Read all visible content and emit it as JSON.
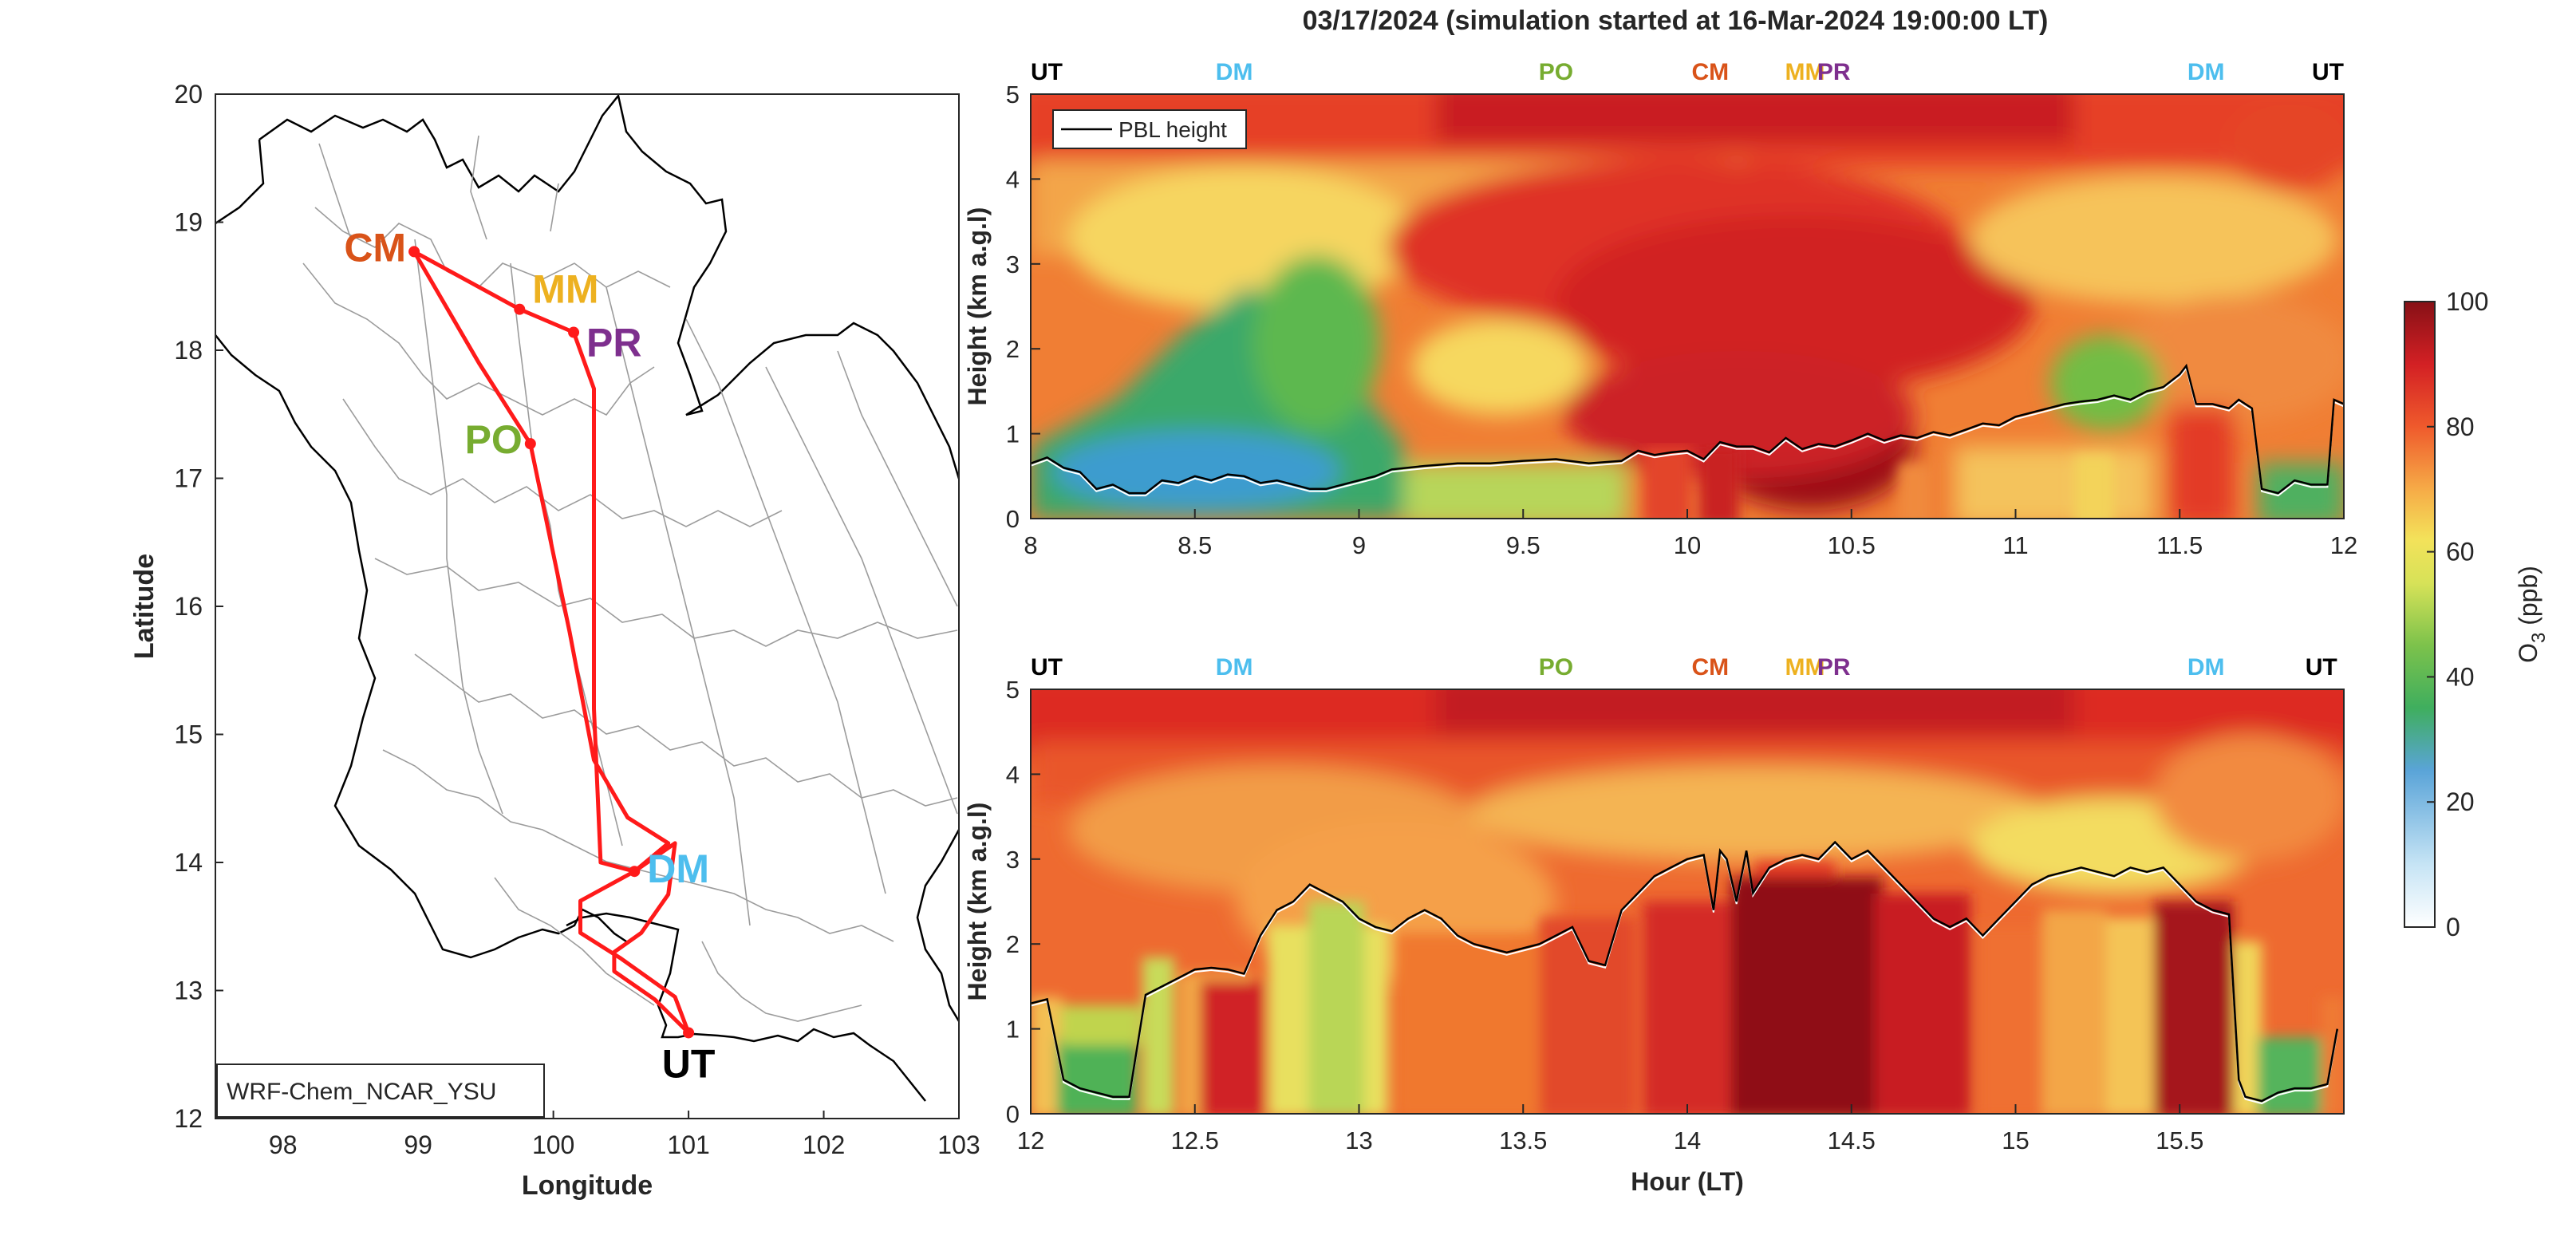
{
  "figure_title": "03/17/2024 (simulation started at 16-Mar-2024 19:00:00 LT)",
  "colors": {
    "route": "#ff1a1a",
    "CM": "#d95319",
    "MM": "#edb120",
    "PR": "#7e2f8e",
    "PO": "#77ac30",
    "DM": "#4dbeee",
    "UT": "#000000"
  },
  "chart_data": [
    {
      "type": "map",
      "xlabel": "Longitude",
      "ylabel": "Latitude",
      "xlim": [
        97.5,
        103
      ],
      "ylim": [
        12,
        20
      ],
      "xticks": [
        98,
        99,
        100,
        101,
        102,
        103
      ],
      "yticks": [
        12,
        13,
        14,
        15,
        16,
        17,
        18,
        19,
        20
      ],
      "legend": "WRF-Chem_NCAR_YSU",
      "stations": [
        {
          "name": "CM",
          "lon": 98.97,
          "lat": 18.77
        },
        {
          "name": "MM",
          "lon": 99.75,
          "lat": 18.32
        },
        {
          "name": "PR",
          "lon": 100.15,
          "lat": 18.14
        },
        {
          "name": "PO",
          "lon": 99.83,
          "lat": 17.27
        },
        {
          "name": "DM",
          "lon": 100.6,
          "lat": 13.93
        },
        {
          "name": "UT",
          "lon": 101.0,
          "lat": 12.67
        }
      ],
      "route": [
        [
          101.0,
          12.67
        ],
        [
          100.75,
          12.93
        ],
        [
          100.45,
          13.15
        ],
        [
          100.45,
          13.3
        ],
        [
          100.65,
          13.45
        ],
        [
          100.85,
          13.75
        ],
        [
          100.9,
          14.15
        ],
        [
          100.6,
          13.93
        ],
        [
          100.35,
          14.0
        ],
        [
          100.3,
          15.2
        ],
        [
          100.3,
          16.3
        ],
        [
          100.3,
          17.7
        ],
        [
          100.15,
          18.14
        ],
        [
          99.75,
          18.32
        ],
        [
          98.97,
          18.77
        ],
        [
          99.45,
          17.9
        ],
        [
          99.83,
          17.27
        ],
        [
          100.12,
          15.8
        ],
        [
          100.3,
          14.8
        ],
        [
          100.55,
          14.35
        ],
        [
          100.85,
          14.15
        ],
        [
          100.6,
          13.93
        ],
        [
          100.2,
          13.7
        ],
        [
          100.2,
          13.45
        ],
        [
          100.5,
          13.25
        ],
        [
          100.9,
          12.95
        ],
        [
          101.0,
          12.67
        ]
      ]
    },
    {
      "type": "heatmap",
      "xlim": [
        8,
        12
      ],
      "ylim": [
        0,
        5
      ],
      "xticks": [
        "8",
        "8.5",
        "9",
        "9.5",
        "10",
        "10.5",
        "11",
        "11.5",
        "12"
      ],
      "yticks": [
        "0",
        "1",
        "2",
        "3",
        "4",
        "5"
      ],
      "ylabel": "Height (km a.g.l)",
      "legend": "PBL height",
      "top_labels": [
        {
          "text": "UT",
          "x": 8.0
        },
        {
          "text": "DM",
          "x": 8.62
        },
        {
          "text": "PO",
          "x": 9.6
        },
        {
          "text": "CM",
          "x": 10.07
        },
        {
          "text": "MM",
          "x": 10.3
        },
        {
          "text": "PR",
          "x": 10.42
        },
        {
          "text": "DM",
          "x": 11.58
        },
        {
          "text": "UT",
          "x": 12.0
        }
      ],
      "pbl": [
        [
          8.0,
          0.65
        ],
        [
          8.05,
          0.72
        ],
        [
          8.1,
          0.6
        ],
        [
          8.15,
          0.55
        ],
        [
          8.2,
          0.35
        ],
        [
          8.25,
          0.4
        ],
        [
          8.3,
          0.3
        ],
        [
          8.35,
          0.3
        ],
        [
          8.4,
          0.45
        ],
        [
          8.45,
          0.42
        ],
        [
          8.5,
          0.5
        ],
        [
          8.55,
          0.45
        ],
        [
          8.6,
          0.52
        ],
        [
          8.65,
          0.5
        ],
        [
          8.7,
          0.42
        ],
        [
          8.75,
          0.45
        ],
        [
          8.8,
          0.4
        ],
        [
          8.85,
          0.35
        ],
        [
          8.9,
          0.35
        ],
        [
          8.95,
          0.4
        ],
        [
          9.0,
          0.45
        ],
        [
          9.05,
          0.5
        ],
        [
          9.1,
          0.58
        ],
        [
          9.2,
          0.62
        ],
        [
          9.3,
          0.65
        ],
        [
          9.4,
          0.65
        ],
        [
          9.5,
          0.68
        ],
        [
          9.6,
          0.7
        ],
        [
          9.7,
          0.65
        ],
        [
          9.8,
          0.68
        ],
        [
          9.85,
          0.8
        ],
        [
          9.9,
          0.75
        ],
        [
          9.95,
          0.78
        ],
        [
          10.0,
          0.8
        ],
        [
          10.05,
          0.7
        ],
        [
          10.1,
          0.9
        ],
        [
          10.15,
          0.85
        ],
        [
          10.2,
          0.85
        ],
        [
          10.25,
          0.78
        ],
        [
          10.3,
          0.95
        ],
        [
          10.35,
          0.82
        ],
        [
          10.4,
          0.88
        ],
        [
          10.45,
          0.85
        ],
        [
          10.5,
          0.92
        ],
        [
          10.55,
          1.0
        ],
        [
          10.6,
          0.92
        ],
        [
          10.65,
          0.98
        ],
        [
          10.7,
          0.95
        ],
        [
          10.75,
          1.02
        ],
        [
          10.8,
          0.98
        ],
        [
          10.85,
          1.05
        ],
        [
          10.9,
          1.12
        ],
        [
          10.95,
          1.1
        ],
        [
          11.0,
          1.2
        ],
        [
          11.05,
          1.25
        ],
        [
          11.1,
          1.3
        ],
        [
          11.15,
          1.35
        ],
        [
          11.2,
          1.38
        ],
        [
          11.25,
          1.4
        ],
        [
          11.3,
          1.45
        ],
        [
          11.35,
          1.4
        ],
        [
          11.4,
          1.5
        ],
        [
          11.45,
          1.55
        ],
        [
          11.5,
          1.7
        ],
        [
          11.52,
          1.8
        ],
        [
          11.55,
          1.35
        ],
        [
          11.6,
          1.35
        ],
        [
          11.65,
          1.3
        ],
        [
          11.68,
          1.4
        ],
        [
          11.7,
          1.35
        ],
        [
          11.72,
          1.3
        ],
        [
          11.75,
          0.35
        ],
        [
          11.8,
          0.3
        ],
        [
          11.85,
          0.45
        ],
        [
          11.9,
          0.4
        ],
        [
          11.95,
          0.4
        ],
        [
          11.97,
          1.4
        ],
        [
          12.0,
          1.35
        ]
      ]
    },
    {
      "type": "heatmap",
      "xlim": [
        12,
        16
      ],
      "ylim": [
        0,
        5
      ],
      "xticks": [
        "12",
        "12.5",
        "13",
        "13.5",
        "14",
        "14.5",
        "15",
        "15.5"
      ],
      "yticks": [
        "0",
        "1",
        "2",
        "3",
        "4",
        "5"
      ],
      "xlabel": "Hour (LT)",
      "ylabel": "Height (km a.g.l)",
      "top_labels": [
        {
          "text": "UT",
          "x": 12.0
        },
        {
          "text": "DM",
          "x": 12.62
        },
        {
          "text": "PO",
          "x": 13.6
        },
        {
          "text": "CM",
          "x": 14.07
        },
        {
          "text": "MM",
          "x": 14.3
        },
        {
          "text": "PR",
          "x": 14.42
        },
        {
          "text": "DM",
          "x": 15.58
        },
        {
          "text": "UT",
          "x": 15.98
        }
      ],
      "pbl": [
        [
          12.0,
          1.3
        ],
        [
          12.05,
          1.35
        ],
        [
          12.1,
          0.4
        ],
        [
          12.15,
          0.3
        ],
        [
          12.2,
          0.25
        ],
        [
          12.25,
          0.2
        ],
        [
          12.3,
          0.2
        ],
        [
          12.35,
          1.4
        ],
        [
          12.4,
          1.5
        ],
        [
          12.45,
          1.6
        ],
        [
          12.5,
          1.7
        ],
        [
          12.55,
          1.72
        ],
        [
          12.6,
          1.7
        ],
        [
          12.65,
          1.65
        ],
        [
          12.7,
          2.1
        ],
        [
          12.75,
          2.4
        ],
        [
          12.8,
          2.5
        ],
        [
          12.85,
          2.7
        ],
        [
          12.9,
          2.6
        ],
        [
          12.95,
          2.5
        ],
        [
          13.0,
          2.3
        ],
        [
          13.05,
          2.2
        ],
        [
          13.1,
          2.15
        ],
        [
          13.15,
          2.3
        ],
        [
          13.2,
          2.4
        ],
        [
          13.25,
          2.3
        ],
        [
          13.3,
          2.1
        ],
        [
          13.35,
          2.0
        ],
        [
          13.4,
          1.95
        ],
        [
          13.45,
          1.9
        ],
        [
          13.5,
          1.95
        ],
        [
          13.55,
          2.0
        ],
        [
          13.6,
          2.1
        ],
        [
          13.65,
          2.2
        ],
        [
          13.7,
          1.8
        ],
        [
          13.75,
          1.75
        ],
        [
          13.8,
          2.4
        ],
        [
          13.85,
          2.6
        ],
        [
          13.9,
          2.8
        ],
        [
          13.95,
          2.9
        ],
        [
          14.0,
          3.0
        ],
        [
          14.05,
          3.05
        ],
        [
          14.08,
          2.4
        ],
        [
          14.1,
          3.1
        ],
        [
          14.12,
          3.0
        ],
        [
          14.15,
          2.5
        ],
        [
          14.18,
          3.1
        ],
        [
          14.2,
          2.6
        ],
        [
          14.25,
          2.9
        ],
        [
          14.3,
          3.0
        ],
        [
          14.35,
          3.05
        ],
        [
          14.4,
          3.0
        ],
        [
          14.45,
          3.2
        ],
        [
          14.5,
          3.0
        ],
        [
          14.55,
          3.1
        ],
        [
          14.6,
          2.9
        ],
        [
          14.65,
          2.7
        ],
        [
          14.7,
          2.5
        ],
        [
          14.75,
          2.3
        ],
        [
          14.8,
          2.2
        ],
        [
          14.85,
          2.3
        ],
        [
          14.9,
          2.1
        ],
        [
          14.95,
          2.3
        ],
        [
          15.0,
          2.5
        ],
        [
          15.05,
          2.7
        ],
        [
          15.1,
          2.8
        ],
        [
          15.15,
          2.85
        ],
        [
          15.2,
          2.9
        ],
        [
          15.25,
          2.85
        ],
        [
          15.3,
          2.8
        ],
        [
          15.35,
          2.9
        ],
        [
          15.4,
          2.85
        ],
        [
          15.45,
          2.9
        ],
        [
          15.5,
          2.7
        ],
        [
          15.55,
          2.5
        ],
        [
          15.6,
          2.4
        ],
        [
          15.65,
          2.35
        ],
        [
          15.68,
          0.4
        ],
        [
          15.7,
          0.2
        ],
        [
          15.75,
          0.15
        ],
        [
          15.8,
          0.25
        ],
        [
          15.85,
          0.3
        ],
        [
          15.9,
          0.3
        ],
        [
          15.95,
          0.35
        ],
        [
          15.98,
          1.0
        ]
      ]
    },
    {
      "type": "colorbar",
      "label": "O3 (ppb)",
      "label_base": "O",
      "label_sub": "3",
      "label_unit": " (ppb)",
      "range": [
        0,
        100
      ],
      "ticks": [
        "0",
        "20",
        "40",
        "60",
        "80",
        "100"
      ]
    }
  ]
}
